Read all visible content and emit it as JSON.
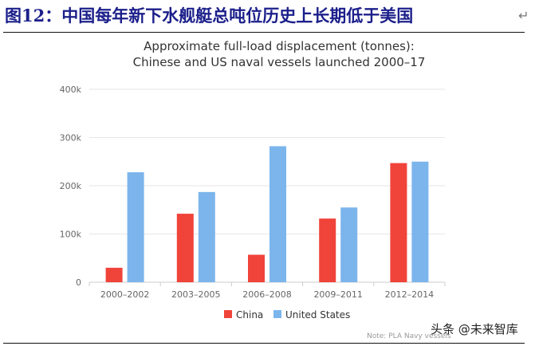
{
  "figure_caption": "图12：中国每年新下水舰艇总吨位历史上长期低于美国",
  "return_mark": "↵",
  "watermark": "头条 @未来智库",
  "colors": {
    "china": "#f0433a",
    "united_states": "#7cb5ec",
    "grid": "#e6e6e6",
    "axis_text": "#666666",
    "caption": "#1b1f8a"
  },
  "chart_data": {
    "type": "bar",
    "title": "Approximate full-load displacement (tonnes):",
    "subtitle": "Chinese and US naval vessels launched 2000–17",
    "categories": [
      "2000–2002",
      "2003–2005",
      "2006–2008",
      "2009–2011",
      "2012–2014"
    ],
    "series": [
      {
        "name": "China",
        "values": [
          30000,
          142000,
          57000,
          132000,
          247000
        ]
      },
      {
        "name": "United States",
        "values": [
          228000,
          187000,
          282000,
          155000,
          250000
        ]
      }
    ],
    "ylim": [
      0,
      400000
    ],
    "yticks": [
      0,
      100000,
      200000,
      300000,
      400000
    ],
    "ytick_labels": [
      "0",
      "100k",
      "200k",
      "300k",
      "400k"
    ],
    "xlabel": "",
    "ylabel": "",
    "grid": true,
    "legend_position": "bottom-center",
    "note": "Note: PLA Navy vessels"
  }
}
